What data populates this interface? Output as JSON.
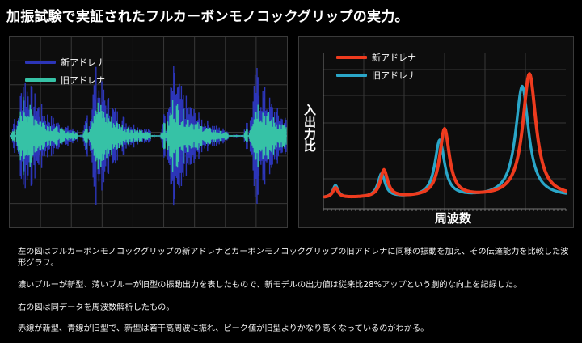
{
  "headline": "加振試験で実証されたフルカーボンモノコックグリップの実力。",
  "colors": {
    "new_wave": "#2c35b8",
    "old_wave": "#36c2a6",
    "new_freq": "#ee3b1e",
    "old_freq": "#2aa6c8",
    "grid": "#383838"
  },
  "left_chart": {
    "legend": [
      {
        "label": "新アドレナ",
        "color": "#2c35b8"
      },
      {
        "label": "旧アドレナ",
        "color": "#36c2a6"
      }
    ]
  },
  "right_chart": {
    "legend": [
      {
        "label": "新アドレナ",
        "color": "#ee3b1e"
      },
      {
        "label": "旧アドレナ",
        "color": "#2aa6c8"
      }
    ],
    "ylabel": "入出力比",
    "xlabel": "周波数"
  },
  "chart_data": [
    {
      "type": "line",
      "title": "",
      "xlabel": "",
      "ylabel": "",
      "grid": true,
      "series": [
        {
          "name": "新アドレナ",
          "bursts": [
            0.02,
            0.28,
            0.56,
            0.86
          ],
          "amplitude": 0.95
        },
        {
          "name": "旧アドレナ",
          "bursts": [
            0.02,
            0.28,
            0.56,
            0.86
          ],
          "amplitude": 0.55
        }
      ]
    },
    {
      "type": "line",
      "title": "",
      "xlabel": "周波数",
      "ylabel": "入出力比",
      "grid": true,
      "series": [
        {
          "name": "新アドレナ",
          "peaks": [
            [
              0.05,
              0.08
            ],
            [
              0.25,
              0.22
            ],
            [
              0.5,
              0.55
            ],
            [
              0.85,
              1.0
            ]
          ]
        },
        {
          "name": "旧アドレナ",
          "peaks": [
            [
              0.05,
              0.1
            ],
            [
              0.24,
              0.19
            ],
            [
              0.48,
              0.46
            ],
            [
              0.82,
              0.9
            ]
          ]
        }
      ]
    }
  ],
  "description": {
    "p1": "左の図はフルカーボンモノコックグリップの新アドレナとカーボンモノコックグリップの旧アドレナに同様の振動を加え、その伝達能力を比較した波形グラフ。",
    "p2": "濃いブルーが新型、薄いブルーが旧型の振動出力を表したもので、新モデルの出力値は従来比28%アップという劇的な向上を記録した。",
    "p3": "右の図は同データを周波数解析したもの。",
    "p4": "赤線が新型、青線が旧型で、新型は若干高周波に振れ、ピーク値が旧型よりかなり高くなっているのがわかる。"
  }
}
